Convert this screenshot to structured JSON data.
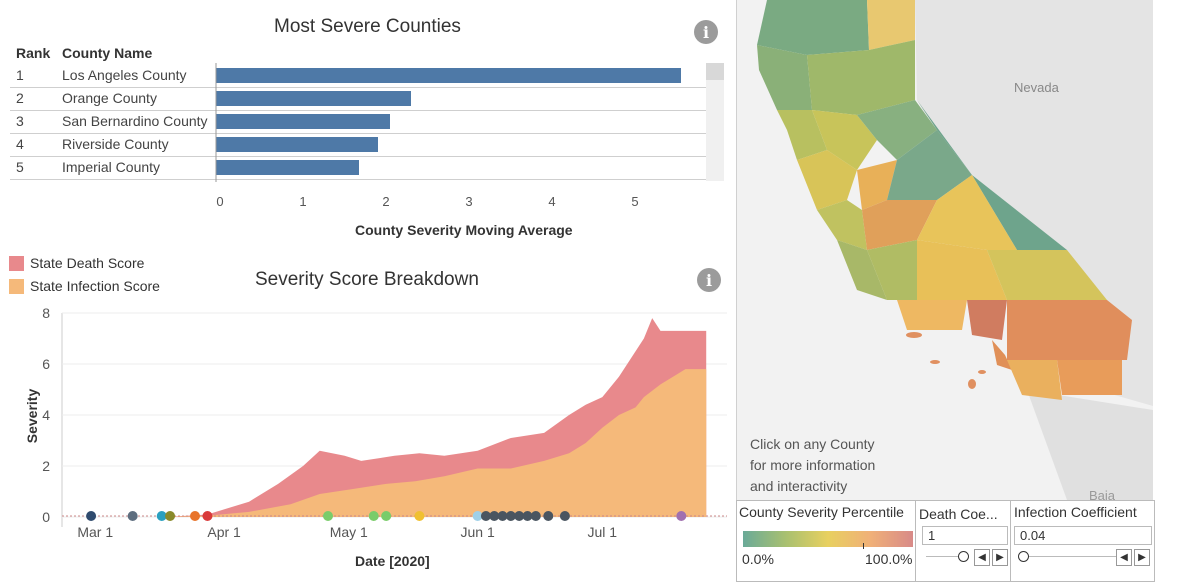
{
  "top_chart": {
    "title": "Most Severe Counties",
    "rank_header": "Rank",
    "county_header": "County Name",
    "x_axis_title": "County Severity Moving Average",
    "x_ticks": [
      "0",
      "1",
      "2",
      "3",
      "4",
      "5"
    ],
    "rows": [
      {
        "rank": "1",
        "county": "Los Angeles County",
        "value": 5.6
      },
      {
        "rank": "2",
        "county": "Orange County",
        "value": 2.35
      },
      {
        "rank": "3",
        "county": "San Bernardino County",
        "value": 2.1
      },
      {
        "rank": "4",
        "county": "Riverside County",
        "value": 1.95
      },
      {
        "rank": "5",
        "county": "Imperial County",
        "value": 1.72
      }
    ],
    "bar_color": "#4e79a7"
  },
  "legend": {
    "death_label": "State Death Score",
    "infection_label": "State Infection Score",
    "death_color": "#e8898c",
    "infection_color": "#f5b97a"
  },
  "chart_data": {
    "type": "area",
    "title": "Severity Score Breakdown",
    "xlabel": "Date [2020]",
    "ylabel": "Severity",
    "ylim": [
      0,
      8
    ],
    "y_ticks": [
      "8",
      "6",
      "4",
      "2",
      "0"
    ],
    "x_ticks": [
      "Mar 1",
      "Apr 1",
      "May 1",
      "Jun 1",
      "Jul 1"
    ],
    "series": [
      {
        "name": "State Infection Score",
        "stack_tops": [
          [
            0,
            0
          ],
          [
            25,
            0
          ],
          [
            35,
            0.05
          ],
          [
            45,
            0.2
          ],
          [
            55,
            0.5
          ],
          [
            62,
            0.9
          ],
          [
            70,
            1.1
          ],
          [
            78,
            1.3
          ],
          [
            85,
            1.4
          ],
          [
            92,
            1.6
          ],
          [
            100,
            1.9
          ],
          [
            108,
            1.9
          ],
          [
            116,
            2.2
          ],
          [
            122,
            2.5
          ],
          [
            126,
            2.9
          ],
          [
            130,
            3.5
          ],
          [
            134,
            4.0
          ],
          [
            138,
            4.3
          ],
          [
            140,
            4.7
          ],
          [
            144,
            5.2
          ],
          [
            148,
            5.6
          ],
          [
            150,
            5.8
          ],
          [
            155,
            5.8
          ]
        ]
      },
      {
        "name": "State Death Score",
        "stack_tops": [
          [
            0,
            0
          ],
          [
            25,
            0
          ],
          [
            35,
            0.1
          ],
          [
            45,
            0.6
          ],
          [
            52,
            1.3
          ],
          [
            58,
            2.0
          ],
          [
            62,
            2.6
          ],
          [
            68,
            2.4
          ],
          [
            72,
            2.2
          ],
          [
            80,
            2.4
          ],
          [
            86,
            2.5
          ],
          [
            92,
            2.4
          ],
          [
            100,
            2.6
          ],
          [
            108,
            3.1
          ],
          [
            116,
            3.3
          ],
          [
            122,
            4.0
          ],
          [
            126,
            4.4
          ],
          [
            130,
            4.7
          ],
          [
            134,
            5.5
          ],
          [
            138,
            6.5
          ],
          [
            140,
            7.0
          ],
          [
            142,
            7.8
          ],
          [
            144,
            7.3
          ],
          [
            148,
            7.3
          ],
          [
            150,
            7.3
          ],
          [
            155,
            7.3
          ]
        ]
      }
    ],
    "events": [
      {
        "day": 7,
        "color": "#2f4b6e"
      },
      {
        "day": 17,
        "color": "#5e6e7f"
      },
      {
        "day": 24,
        "color": "#2aa0c0"
      },
      {
        "day": 26,
        "color": "#8a8a2a"
      },
      {
        "day": 32,
        "color": "#e8742a"
      },
      {
        "day": 35,
        "color": "#d93a3a"
      },
      {
        "day": 64,
        "color": "#7acc6a"
      },
      {
        "day": 75,
        "color": "#7acc6a"
      },
      {
        "day": 78,
        "color": "#7acc6a"
      },
      {
        "day": 86,
        "color": "#f0c030"
      },
      {
        "day": 100,
        "color": "#9fd0e8"
      },
      {
        "day": 102,
        "color": "#4a5560"
      },
      {
        "day": 104,
        "color": "#4a5560"
      },
      {
        "day": 106,
        "color": "#4a5560"
      },
      {
        "day": 108,
        "color": "#4a5560"
      },
      {
        "day": 110,
        "color": "#4a5560"
      },
      {
        "day": 112,
        "color": "#4a5560"
      },
      {
        "day": 114,
        "color": "#4a5560"
      },
      {
        "day": 117,
        "color": "#4a5560"
      },
      {
        "day": 121,
        "color": "#4a5560"
      },
      {
        "day": 149,
        "color": "#a070b0"
      }
    ]
  },
  "map": {
    "state_label": "Nevada",
    "baja_label": "Baja",
    "hint_line1": "Click on any County",
    "hint_line2": "for more information",
    "hint_line3": "and interactivity"
  },
  "controls": {
    "percentile_title": "County Severity Percentile",
    "percentile_min": "0.0%",
    "percentile_max": "100.0%",
    "death_coef_title": "Death Coe...",
    "death_coef_value": "1",
    "infection_coef_title": "Infection Coefficient",
    "infection_coef_value": "0.04"
  }
}
